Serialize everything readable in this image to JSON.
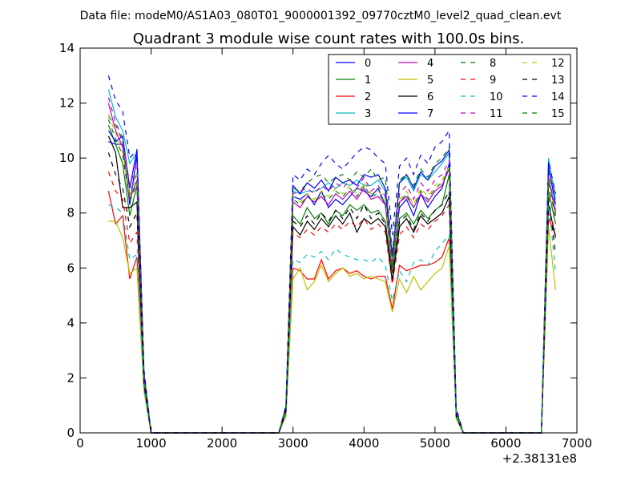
{
  "chart_data": {
    "type": "line",
    "suptitle": "Data file: modeM0/AS1A03_080T01_9000001392_09770cztM0_level2_quad_clean.evt",
    "title": "Quadrant 3 module wise count rates with 100.0s bins.",
    "xlabel": "",
    "ylabel": "",
    "x_offset_label": "+2.38131e8",
    "xlim": [
      0,
      7000
    ],
    "ylim": [
      0,
      14
    ],
    "xticks": [
      0,
      1000,
      2000,
      3000,
      4000,
      5000,
      6000,
      7000
    ],
    "yticks": [
      0,
      2,
      4,
      6,
      8,
      10,
      12,
      14
    ],
    "xtick_labels": [
      "0",
      "1000",
      "2000",
      "3000",
      "4000",
      "5000",
      "6000",
      "7000"
    ],
    "ytick_labels": [
      "0",
      "2",
      "4",
      "6",
      "8",
      "10",
      "12",
      "14"
    ],
    "grid": false,
    "legend_position": "top-right",
    "legend_columns": 4,
    "x": [
      400,
      500,
      600,
      700,
      800,
      900,
      1000,
      2800,
      2900,
      3000,
      3100,
      3200,
      3300,
      3400,
      3500,
      3600,
      3700,
      3800,
      3900,
      4000,
      4100,
      4200,
      4300,
      4400,
      4500,
      4600,
      4700,
      4800,
      4900,
      5000,
      5100,
      5200,
      5300,
      5400,
      6500,
      6600,
      6700
    ],
    "series": [
      {
        "name": "0",
        "color": "#0000ff",
        "dash": "solid",
        "values": [
          10.6,
          10.5,
          10.5,
          8.3,
          10.1,
          2.1,
          0,
          0,
          0.9,
          8.6,
          8.5,
          8.7,
          8.3,
          8.8,
          8.2,
          8.5,
          8.3,
          8.6,
          8.9,
          8.8,
          8.6,
          8.9,
          8.3,
          6.2,
          8.2,
          8.5,
          7.9,
          8.7,
          8.2,
          8.6,
          8.9,
          9.8,
          0.7,
          0,
          0,
          9.3,
          8.0
        ]
      },
      {
        "name": "1",
        "color": "#008000",
        "dash": "solid",
        "values": [
          11.2,
          10.5,
          9.8,
          7.9,
          9.0,
          2.0,
          0,
          0,
          0.8,
          7.9,
          7.6,
          8.2,
          7.8,
          8.0,
          7.6,
          8.1,
          7.9,
          8.3,
          8.1,
          8.3,
          8.0,
          8.1,
          7.7,
          5.8,
          7.8,
          8.0,
          7.6,
          8.1,
          7.8,
          8.1,
          8.3,
          9.4,
          0.7,
          0,
          0,
          8.8,
          7.6
        ]
      },
      {
        "name": "2",
        "color": "#ff0000",
        "dash": "solid",
        "values": [
          8.8,
          7.6,
          7.9,
          5.6,
          6.4,
          1.6,
          0,
          0,
          0.7,
          6.0,
          5.9,
          5.6,
          5.6,
          6.3,
          5.6,
          5.9,
          6.0,
          5.8,
          5.9,
          5.7,
          5.6,
          5.7,
          5.7,
          4.5,
          6.1,
          5.9,
          6.0,
          6.1,
          6.1,
          6.2,
          6.4,
          7.1,
          0.6,
          0,
          0,
          7.8,
          7.2
        ]
      },
      {
        "name": "3",
        "color": "#00bfbf",
        "dash": "solid",
        "values": [
          12.5,
          11.5,
          11.0,
          9.8,
          10.2,
          2.2,
          0,
          0,
          1.0,
          8.8,
          8.7,
          8.8,
          8.8,
          8.9,
          9.1,
          8.9,
          9.1,
          9.0,
          9.2,
          9.0,
          9.0,
          9.2,
          8.8,
          6.3,
          9.1,
          9.3,
          8.8,
          9.4,
          9.2,
          9.5,
          9.8,
          10.2,
          0.8,
          0,
          0,
          10.0,
          8.5
        ]
      },
      {
        "name": "4",
        "color": "#bf00bf",
        "dash": "solid",
        "values": [
          12.0,
          11.0,
          10.4,
          8.5,
          9.2,
          2.0,
          0,
          0,
          0.9,
          8.4,
          8.2,
          8.6,
          8.4,
          8.6,
          8.3,
          8.7,
          8.5,
          8.8,
          8.5,
          8.9,
          8.5,
          8.6,
          8.3,
          6.0,
          8.4,
          8.6,
          8.2,
          8.7,
          8.4,
          8.8,
          9.0,
          9.6,
          0.7,
          0,
          0,
          9.3,
          7.9
        ]
      },
      {
        "name": "5",
        "color": "#bfbf00",
        "dash": "solid",
        "values": [
          7.7,
          7.7,
          7.1,
          5.8,
          6.0,
          1.5,
          0,
          0,
          0.6,
          5.6,
          6.0,
          5.2,
          5.5,
          6.1,
          5.5,
          5.8,
          6.0,
          5.7,
          5.8,
          5.6,
          5.7,
          5.6,
          5.5,
          4.4,
          5.6,
          5.1,
          5.7,
          5.2,
          5.5,
          5.8,
          6.0,
          6.8,
          0.5,
          0,
          0,
          7.5,
          5.2
        ]
      },
      {
        "name": "6",
        "color": "#000000",
        "dash": "solid",
        "values": [
          10.8,
          10.2,
          8.2,
          8.2,
          8.4,
          1.8,
          0,
          0,
          0.8,
          7.5,
          7.2,
          7.7,
          7.4,
          7.8,
          7.5,
          7.9,
          7.6,
          8.0,
          7.3,
          7.8,
          7.6,
          7.8,
          7.5,
          5.5,
          7.5,
          7.8,
          7.3,
          7.9,
          7.6,
          7.8,
          8.0,
          8.6,
          0.6,
          0,
          0,
          8.3,
          7.1
        ]
      },
      {
        "name": "7",
        "color": "#0000ff",
        "dash": "solid",
        "values": [
          11.0,
          10.6,
          10.8,
          8.9,
          10.3,
          2.2,
          0,
          0,
          0.9,
          9.0,
          8.7,
          9.1,
          8.9,
          9.2,
          8.8,
          9.3,
          9.1,
          9.2,
          9.0,
          9.4,
          9.3,
          9.4,
          8.9,
          6.4,
          9.1,
          9.4,
          8.9,
          9.5,
          9.2,
          9.7,
          9.9,
          10.3,
          0.8,
          0,
          0,
          9.7,
          8.3
        ]
      },
      {
        "name": "8",
        "color": "#008000",
        "dash": "dashed",
        "values": [
          11.5,
          11.2,
          10.6,
          8.7,
          9.5,
          2.1,
          0,
          0,
          0.9,
          8.9,
          8.8,
          9.1,
          9.3,
          9.4,
          9.1,
          9.3,
          9.4,
          9.2,
          9.5,
          9.3,
          9.6,
          9.2,
          9.3,
          6.6,
          9.2,
          9.4,
          9.0,
          9.6,
          9.3,
          9.8,
          10.0,
          10.4,
          0.8,
          0,
          0,
          9.5,
          8.7
        ]
      },
      {
        "name": "9",
        "color": "#ff0000",
        "dash": "dashed",
        "values": [
          9.5,
          8.8,
          8.5,
          6.9,
          7.3,
          1.7,
          0,
          0,
          0.7,
          7.3,
          7.1,
          7.4,
          7.2,
          7.5,
          7.3,
          7.6,
          7.4,
          7.7,
          7.5,
          7.8,
          7.4,
          7.6,
          7.3,
          5.4,
          7.2,
          7.5,
          7.1,
          7.6,
          7.4,
          7.7,
          7.9,
          8.3,
          0.6,
          0,
          0,
          8.0,
          7.4
        ]
      },
      {
        "name": "10",
        "color": "#00bfbf",
        "dash": "dashed",
        "values": [
          8.3,
          8.2,
          8.0,
          6.3,
          6.5,
          1.6,
          0,
          0,
          0.7,
          6.3,
          6.2,
          6.5,
          6.4,
          6.6,
          6.3,
          6.7,
          6.5,
          6.4,
          6.3,
          6.3,
          6.2,
          6.4,
          6.1,
          4.8,
          5.9,
          5.5,
          6.2,
          6.3,
          6.1,
          6.6,
          6.9,
          7.2,
          0.6,
          0,
          0,
          8.5,
          5.8
        ]
      },
      {
        "name": "11",
        "color": "#bf00bf",
        "dash": "dashed",
        "values": [
          12.2,
          11.3,
          10.7,
          9.0,
          9.8,
          2.1,
          0,
          0,
          0.9,
          8.7,
          8.8,
          8.9,
          8.7,
          9.0,
          8.8,
          9.1,
          8.9,
          9.2,
          8.9,
          9.3,
          8.8,
          9.0,
          8.6,
          6.2,
          8.7,
          9.0,
          8.5,
          9.1,
          8.8,
          9.2,
          9.4,
          9.9,
          0.7,
          0,
          0,
          9.4,
          8.1
        ]
      },
      {
        "name": "12",
        "color": "#bfbf00",
        "dash": "dashed",
        "values": [
          11.6,
          10.9,
          10.2,
          8.6,
          9.4,
          2.0,
          0,
          0,
          0.8,
          8.6,
          8.4,
          8.7,
          8.5,
          8.8,
          8.6,
          8.9,
          8.7,
          9.0,
          8.7,
          9.1,
          8.7,
          8.8,
          8.5,
          6.1,
          8.5,
          8.8,
          8.3,
          8.9,
          8.6,
          9.0,
          9.2,
          9.7,
          0.7,
          0,
          0,
          9.2,
          7.9
        ]
      },
      {
        "name": "13",
        "color": "#000000",
        "dash": "dashed",
        "values": [
          10.2,
          9.4,
          8.9,
          7.5,
          8.0,
          1.8,
          0,
          0,
          0.8,
          7.7,
          7.5,
          7.9,
          7.6,
          8.0,
          7.7,
          8.1,
          7.8,
          8.2,
          7.8,
          8.3,
          7.8,
          8.0,
          7.6,
          5.6,
          7.7,
          7.9,
          7.4,
          8.0,
          7.7,
          8.1,
          8.3,
          8.8,
          0.6,
          0,
          0,
          8.6,
          6.5
        ]
      },
      {
        "name": "14",
        "color": "#0000ff",
        "dash": "dashed",
        "values": [
          13.0,
          12.1,
          11.7,
          10.0,
          10.3,
          2.3,
          0,
          0,
          1.0,
          9.4,
          9.2,
          9.6,
          9.4,
          9.8,
          10.1,
          9.8,
          9.6,
          9.9,
          10.2,
          10.4,
          10.3,
          10.0,
          9.8,
          7.2,
          9.7,
          10.0,
          9.4,
          10.1,
          9.8,
          10.4,
          10.6,
          11.0,
          0.9,
          0,
          0,
          9.9,
          8.7
        ]
      },
      {
        "name": "15",
        "color": "#008000",
        "dash": "dashed",
        "values": [
          11.4,
          10.7,
          10.1,
          8.4,
          9.1,
          2.0,
          0,
          0,
          0.8,
          8.5,
          8.3,
          8.6,
          8.4,
          8.7,
          8.5,
          8.8,
          8.6,
          8.9,
          8.6,
          9.0,
          8.6,
          8.7,
          8.4,
          6.0,
          8.4,
          8.7,
          8.2,
          8.8,
          8.5,
          8.9,
          9.1,
          9.6,
          0.7,
          0,
          0,
          9.1,
          7.8
        ]
      }
    ]
  }
}
